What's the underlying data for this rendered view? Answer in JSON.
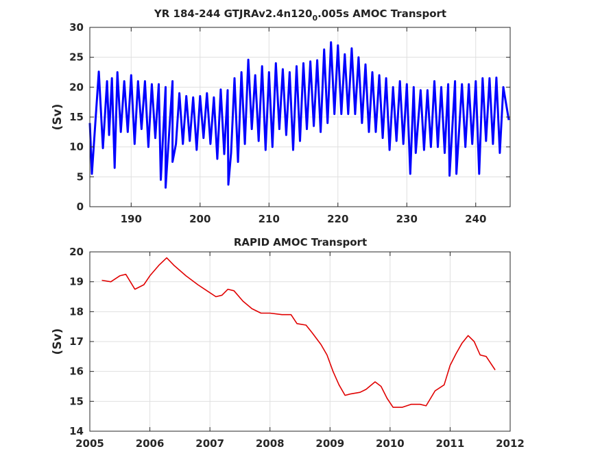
{
  "chart_data": [
    {
      "type": "line",
      "title": "YR 184-244 GTJRAv2.4n120",
      "title_sub": "0",
      "title_tail": ".005s AMOC Transport",
      "xlabel": "",
      "ylabel": "(Sv)",
      "xlim": [
        184,
        245
      ],
      "ylim": [
        0,
        30
      ],
      "xticks": [
        190,
        200,
        210,
        220,
        230,
        240
      ],
      "yticks": [
        0,
        5,
        10,
        15,
        20,
        25,
        30
      ],
      "grid": true,
      "series": [
        {
          "color": "#0000ff",
          "peaks_x": [
            184.0,
            185.3,
            186.5,
            187.2,
            188.0,
            189.0,
            190.0,
            191.0,
            192.0,
            193.0,
            194.0,
            195.0,
            196.0,
            197.0,
            198.0,
            199.0,
            200.0,
            201.0,
            202.0,
            203.0,
            204.0,
            205.0,
            206.0,
            207.0,
            208.0,
            209.0,
            210.0,
            211.0,
            212.0,
            213.0,
            214.0,
            215.0,
            216.0,
            217.0,
            218.0,
            219.0,
            220.0,
            221.0,
            222.0,
            223.0,
            224.0,
            225.0,
            226.0,
            227.0,
            228.0,
            229.0,
            230.0,
            231.0,
            232.0,
            233.0,
            234.0,
            235.0,
            236.0,
            237.0,
            238.0,
            239.0,
            240.0,
            241.0,
            242.0,
            243.0,
            244.0,
            244.8
          ],
          "peaks_y": [
            14,
            22.6,
            21,
            21.5,
            22.5,
            21,
            22,
            21,
            21,
            20.5,
            20.5,
            20,
            21,
            19,
            18.5,
            18.3,
            18.5,
            19,
            18.3,
            19.6,
            19.5,
            21.5,
            22.5,
            24.6,
            22,
            23.5,
            22.5,
            24,
            23,
            22.5,
            23.5,
            24,
            24.3,
            24.5,
            26.3,
            27.5,
            27,
            25.5,
            26.5,
            25,
            23.8,
            22.5,
            22,
            21.5,
            20,
            21,
            20.5,
            20,
            19.5,
            19.5,
            21,
            20,
            20.5,
            21,
            20.5,
            20.5,
            21,
            21.5,
            21.5,
            21.6,
            20,
            14.5
          ],
          "troughs_x": [
            184.3,
            185.9,
            186.8,
            187.6,
            188.5,
            189.5,
            190.5,
            191.5,
            192.5,
            193.5,
            194.3,
            195.0,
            196.0,
            196.5,
            197.5,
            198.5,
            199.5,
            200.5,
            201.5,
            202.5,
            203.5,
            204.1,
            204.5,
            205.5,
            206.5,
            207.5,
            208.5,
            209.5,
            210.5,
            211.5,
            212.5,
            213.5,
            214.5,
            215.5,
            216.5,
            217.5,
            218.5,
            219.5,
            220.5,
            221.5,
            222.5,
            223.5,
            224.5,
            225.5,
            226.5,
            227.5,
            228.5,
            229.5,
            230.5,
            231.3,
            232.5,
            233.5,
            234.5,
            235.5,
            236.2,
            237.2,
            238.5,
            239.5,
            240.5,
            241.5,
            242.5,
            243.5
          ],
          "troughs_y": [
            5.5,
            9.8,
            12,
            6.5,
            12.5,
            12.5,
            10.5,
            13,
            10,
            11.5,
            4.5,
            3.2,
            7.5,
            10.5,
            10.5,
            11,
            9.5,
            11.5,
            10.5,
            8,
            8.8,
            3.7,
            9,
            7.5,
            10.5,
            13,
            11,
            9.5,
            10,
            13,
            12,
            9.5,
            11,
            13,
            13.5,
            12.5,
            14,
            15.5,
            15.5,
            15.5,
            15.5,
            14,
            12.5,
            12.5,
            11.5,
            9.5,
            11,
            10.5,
            5.5,
            9,
            9.5,
            10,
            10,
            9,
            5.2,
            5.5,
            10,
            10.5,
            5.5,
            11,
            10.5,
            9
          ]
        }
      ]
    },
    {
      "type": "line",
      "title": "RAPID AMOC Transport",
      "xlabel": "",
      "ylabel": "(Sv)",
      "xlim": [
        2005,
        2012
      ],
      "ylim": [
        14,
        20
      ],
      "xticks": [
        2005,
        2006,
        2007,
        2008,
        2009,
        2010,
        2011,
        2012
      ],
      "yticks": [
        14,
        15,
        16,
        17,
        18,
        19,
        20
      ],
      "grid": true,
      "series": [
        {
          "color": "#e00000",
          "x": [
            2005.2,
            2005.35,
            2005.5,
            2005.6,
            2005.75,
            2005.9,
            2006.0,
            2006.15,
            2006.28,
            2006.4,
            2006.6,
            2006.8,
            2006.95,
            2007.1,
            2007.2,
            2007.3,
            2007.4,
            2007.55,
            2007.7,
            2007.85,
            2008.0,
            2008.2,
            2008.35,
            2008.45,
            2008.6,
            2008.7,
            2008.85,
            2008.95,
            2009.05,
            2009.15,
            2009.25,
            2009.35,
            2009.5,
            2009.6,
            2009.75,
            2009.85,
            2009.95,
            2010.05,
            2010.2,
            2010.35,
            2010.5,
            2010.6,
            2010.75,
            2010.9,
            2011.0,
            2011.1,
            2011.2,
            2011.3,
            2011.4,
            2011.5,
            2011.6,
            2011.75
          ],
          "y": [
            19.05,
            19.0,
            19.2,
            19.25,
            18.75,
            18.9,
            19.2,
            19.55,
            19.8,
            19.55,
            19.2,
            18.9,
            18.7,
            18.5,
            18.55,
            18.75,
            18.7,
            18.35,
            18.1,
            17.95,
            17.95,
            17.9,
            17.9,
            17.6,
            17.55,
            17.3,
            16.9,
            16.55,
            16.0,
            15.55,
            15.2,
            15.25,
            15.3,
            15.4,
            15.65,
            15.5,
            15.1,
            14.8,
            14.8,
            14.9,
            14.9,
            14.85,
            15.35,
            15.55,
            16.2,
            16.6,
            16.95,
            17.2,
            17.0,
            16.55,
            16.5,
            16.05
          ]
        }
      ]
    }
  ]
}
